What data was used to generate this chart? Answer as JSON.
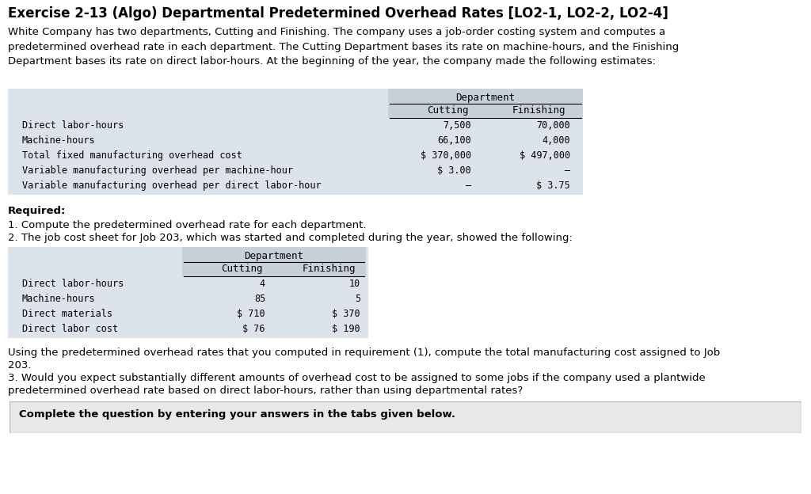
{
  "title": "Exercise 2-13 (Algo) Departmental Predetermined Overhead Rates [LO2-1, LO2-2, LO2-4]",
  "intro_text": "White Company has two departments, Cutting and Finishing. The company uses a job-order costing system and computes a\npredetermined overhead rate in each department. The Cutting Department bases its rate on machine-hours, and the Finishing\nDepartment bases its rate on direct labor-hours. At the beginning of the year, the company made the following estimates:",
  "table1_header_top": "Department",
  "table1_col1": "Cutting",
  "table1_col2": "Finishing",
  "table1_rows": [
    [
      "Direct labor-hours",
      "7,500",
      "70,000"
    ],
    [
      "Machine-hours",
      "66,100",
      "4,000"
    ],
    [
      "Total fixed manufacturing overhead cost",
      "$ 370,000",
      "$ 497,000"
    ],
    [
      "Variable manufacturing overhead per machine-hour",
      "$ 3.00",
      "–"
    ],
    [
      "Variable manufacturing overhead per direct labor-hour",
      "–",
      "$ 3.75"
    ]
  ],
  "required_line0": "Required:",
  "required_line1": "1. Compute the predetermined overhead rate for each department.",
  "required_line2": "2. The job cost sheet for Job 203, which was started and completed during the year, showed the following:",
  "table2_header_top": "Department",
  "table2_col1": "Cutting",
  "table2_col2": "Finishing",
  "table2_rows": [
    [
      "Direct labor-hours",
      "4",
      "10"
    ],
    [
      "Machine-hours",
      "85",
      "5"
    ],
    [
      "Direct materials",
      "$ 710",
      "$ 370"
    ],
    [
      "Direct labor cost",
      "$ 76",
      "$ 190"
    ]
  ],
  "after_line1": "Using the predetermined overhead rates that you computed in requirement (1), compute the total manufacturing cost assigned to Job",
  "after_line2": "203.",
  "after_line3": "3. Would you expect substantially different amounts of overhead cost to be assigned to some jobs if the company used a plantwide",
  "after_line4": "predetermined overhead rate based on direct labor-hours, rather than using departmental rates?",
  "bottom_text": "Complete the question by entering your answers in the tabs given below.",
  "bg_color": "#ffffff",
  "table_bg": "#dde3ea",
  "header_bg": "#c8d0da",
  "bottom_box_bg": "#e8e8e8",
  "bottom_box_border": "#bbbbbb"
}
